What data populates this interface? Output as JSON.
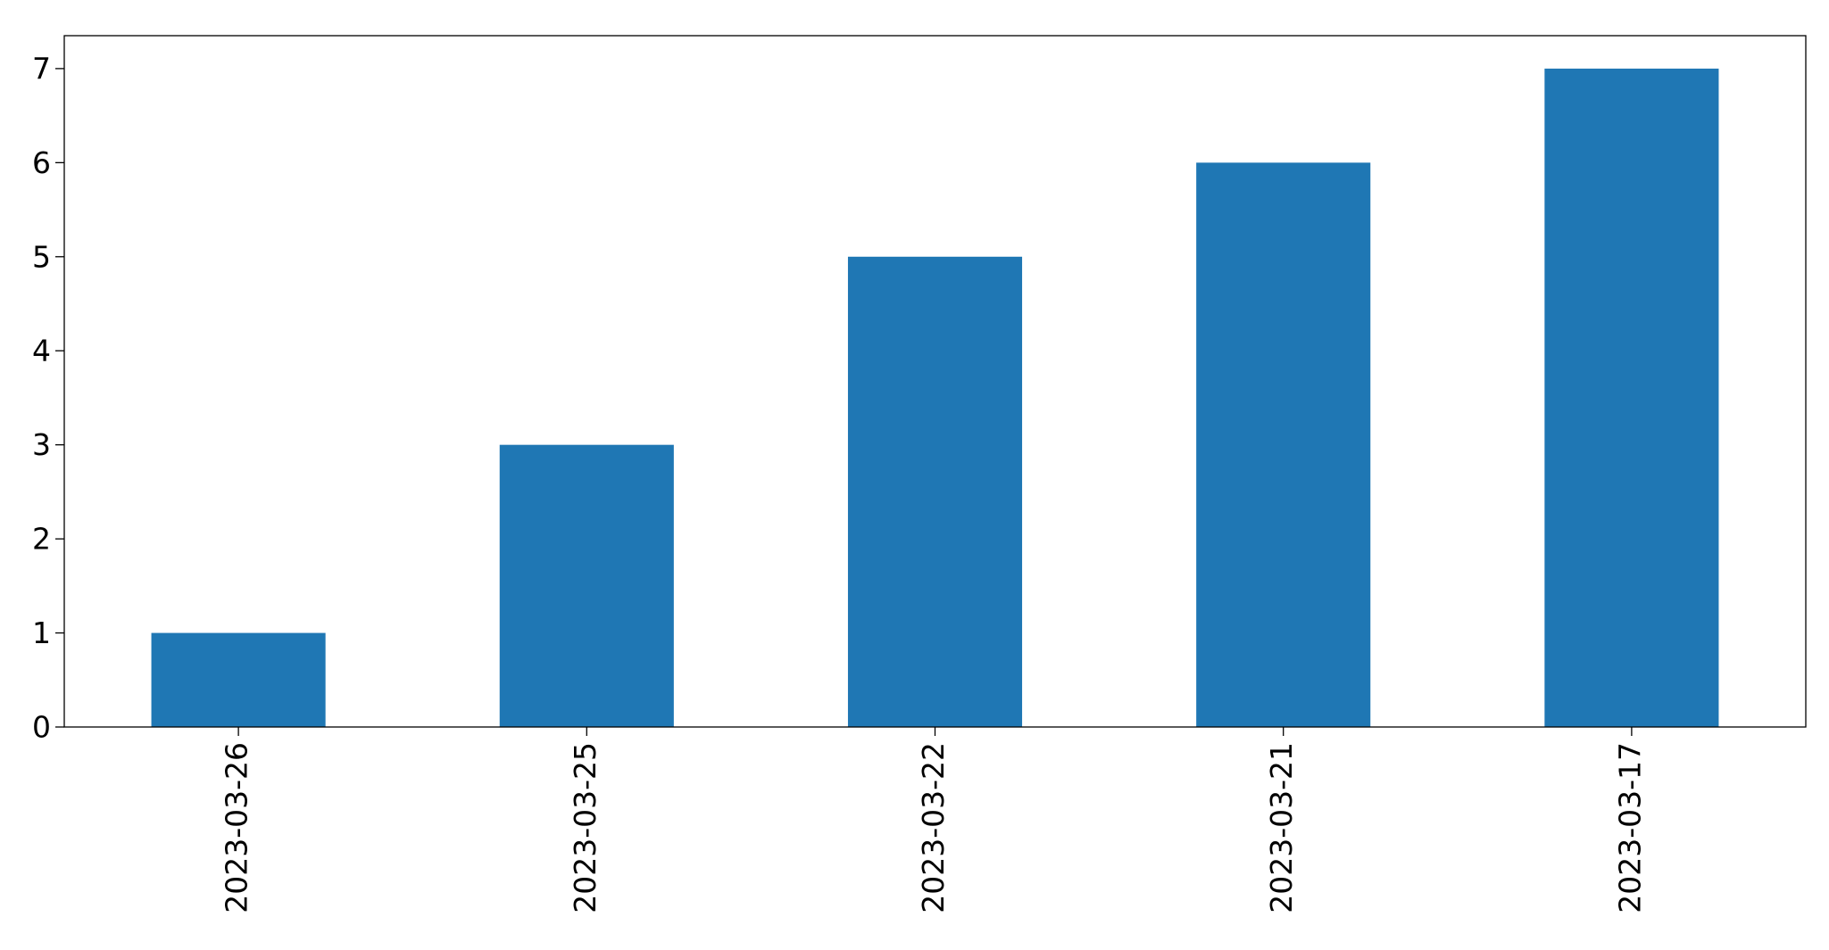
{
  "chart_data": {
    "type": "bar",
    "categories": [
      "2023-03-26",
      "2023-03-25",
      "2023-03-22",
      "2023-03-21",
      "2023-03-17"
    ],
    "values": [
      1,
      3,
      5,
      6,
      7
    ],
    "title": "",
    "xlabel": "",
    "ylabel": "",
    "ylim": [
      0,
      7.35
    ],
    "yticks": [
      0,
      1,
      2,
      3,
      4,
      5,
      6,
      7
    ],
    "grid": false,
    "legend": "none",
    "bar_color": "#1f77b4",
    "x_tick_rotation": "vertical"
  }
}
